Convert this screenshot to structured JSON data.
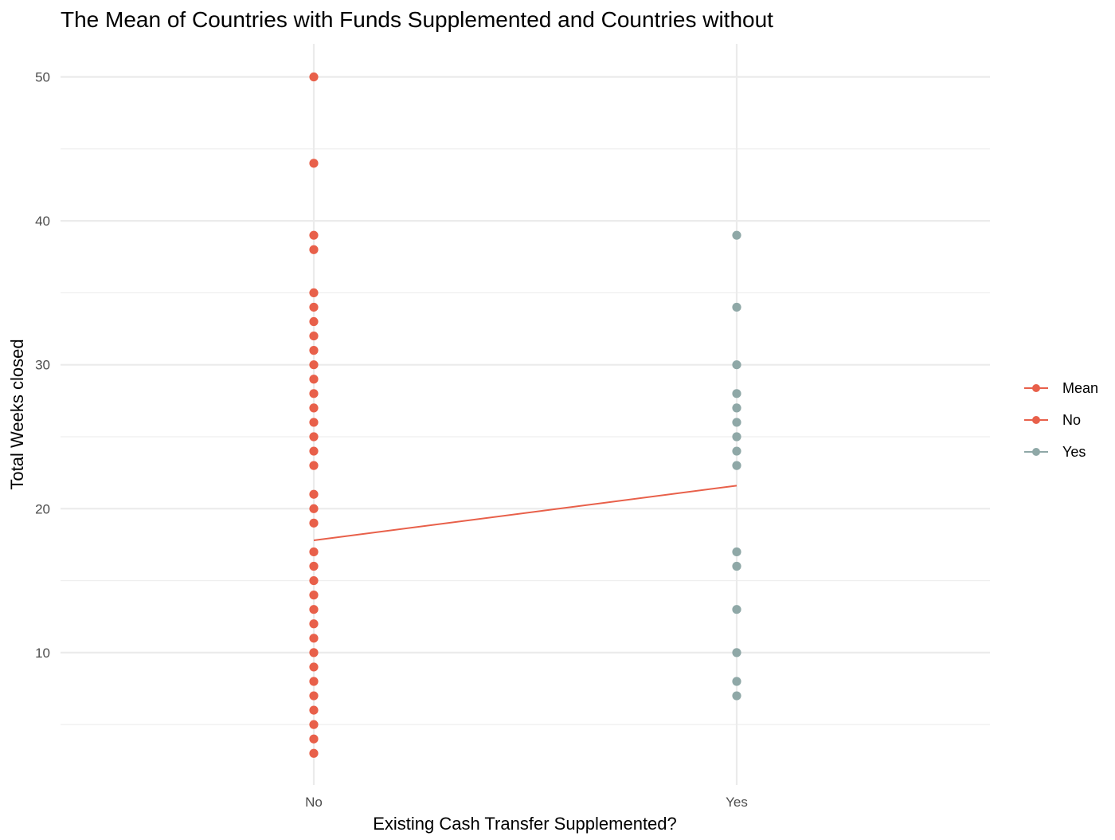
{
  "chart_data": {
    "type": "scatter",
    "title": "The Mean of Countries with Funds Supplemented and Countries without",
    "xlabel": "Existing Cash Transfer Supplemented?",
    "ylabel": "Total Weeks closed",
    "categories": [
      "No",
      "Yes"
    ],
    "y_ticks": [
      10,
      20,
      30,
      40,
      50
    ],
    "ylim": [
      0.8,
      52.3
    ],
    "grid": true,
    "legend_position": "right",
    "legend": [
      {
        "label": "Mean",
        "color": "#E8604A"
      },
      {
        "label": "No",
        "color": "#E8604A"
      },
      {
        "label": "Yes",
        "color": "#8FA8A7"
      }
    ],
    "series": [
      {
        "name": "No",
        "color": "#E8604A",
        "x": "No",
        "values": [
          50,
          44,
          39,
          38,
          35,
          34,
          33,
          32,
          31,
          30,
          29,
          28,
          27,
          26,
          25,
          24,
          23,
          21,
          20,
          19,
          17,
          16,
          15,
          14,
          13,
          12,
          11,
          10,
          9,
          8,
          7,
          6,
          5,
          4,
          3
        ]
      },
      {
        "name": "Yes",
        "color": "#8FA8A7",
        "x": "Yes",
        "values": [
          39,
          34,
          30,
          28,
          27,
          26,
          25,
          24,
          23,
          17,
          16,
          13,
          10,
          8,
          7
        ]
      },
      {
        "name": "Mean",
        "color": "#E8604A",
        "type": "line",
        "x": [
          "No",
          "Yes"
        ],
        "values": [
          17.8,
          21.6
        ]
      }
    ]
  }
}
